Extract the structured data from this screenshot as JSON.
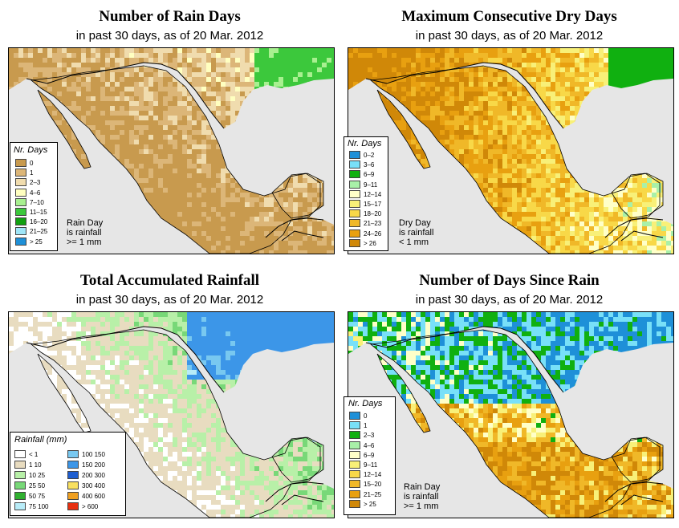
{
  "colors": {
    "sea": "#e6e6e6",
    "land_base": "#f5f0d8",
    "border": "#000000"
  },
  "panels": [
    {
      "title": "Number of Rain Days",
      "subtitle": "in past 30 days, as of  20 Mar. 2012",
      "legend": {
        "title": "Nr. Days",
        "items": [
          {
            "label": "0",
            "color": "#c89a4e"
          },
          {
            "label": "1",
            "color": "#dcb678"
          },
          {
            "label": "2–3",
            "color": "#f0dcae"
          },
          {
            "label": "4–6",
            "color": "#ffffc0"
          },
          {
            "label": "7–10",
            "color": "#a8f090"
          },
          {
            "label": "11–15",
            "color": "#3cc83c"
          },
          {
            "label": "16–20",
            "color": "#10a010"
          },
          {
            "label": "21–25",
            "color": "#a0e6f8"
          },
          {
            "label": "> 25",
            "color": "#1e90d8"
          }
        ]
      },
      "note": [
        "Rain Day",
        "is rainfall",
        ">= 1 mm"
      ]
    },
    {
      "title": "Maximum Consecutive Dry Days",
      "subtitle": "in past 30 days, as of  20 Mar. 2012",
      "legend": {
        "title": "Nr. Days",
        "items": [
          {
            "label": "0–2",
            "color": "#1e90d8"
          },
          {
            "label": "3–6",
            "color": "#78e0f8"
          },
          {
            "label": "6–9",
            "color": "#10b010"
          },
          {
            "label": "9–11",
            "color": "#a8f0a8"
          },
          {
            "label": "12–14",
            "color": "#ffffc8"
          },
          {
            "label": "15–17",
            "color": "#f8f078"
          },
          {
            "label": "18–20",
            "color": "#f8d848"
          },
          {
            "label": "21–23",
            "color": "#f0b828"
          },
          {
            "label": "24–26",
            "color": "#e8a010"
          },
          {
            "label": "> 26",
            "color": "#d08808"
          }
        ]
      },
      "note": [
        "Dry Day",
        "is rainfall",
        "< 1 mm"
      ]
    },
    {
      "title": "Total Accumulated Rainfall",
      "subtitle": "in past 30 days, as of  20 Mar. 2012",
      "legend": {
        "title": "Rainfall (mm)",
        "items": [
          {
            "label": "< 1",
            "color": "#ffffff"
          },
          {
            "label": "1    10",
            "color": "#e8dcc0"
          },
          {
            "label": "10    25",
            "color": "#b8f0a8"
          },
          {
            "label": "25    50",
            "color": "#78d878"
          },
          {
            "label": "50    75",
            "color": "#30b030"
          },
          {
            "label": "75    100",
            "color": "#b8ecf8"
          },
          {
            "label": "100    150",
            "color": "#78c8f0"
          },
          {
            "label": "150    200",
            "color": "#3c96e8"
          },
          {
            "label": "200    300",
            "color": "#1e5ed0"
          },
          {
            "label": "300    400",
            "color": "#f8e060"
          },
          {
            "label": "400    600",
            "color": "#f0a020"
          },
          {
            "label": "> 600",
            "color": "#e83010"
          }
        ]
      },
      "note": []
    },
    {
      "title": "Number of Days Since Rain",
      "subtitle": "in past 30 days, as of  20 Mar. 2012",
      "legend": {
        "title": "Nr. Days",
        "items": [
          {
            "label": "0",
            "color": "#1e90d8"
          },
          {
            "label": "1",
            "color": "#78e0f8"
          },
          {
            "label": "2–3",
            "color": "#10b010"
          },
          {
            "label": "4–6",
            "color": "#a8f0a8"
          },
          {
            "label": "6–9",
            "color": "#ffffc8"
          },
          {
            "label": "9–11",
            "color": "#f8f078"
          },
          {
            "label": "12–14",
            "color": "#f8d848"
          },
          {
            "label": "15–20",
            "color": "#f0b828"
          },
          {
            "label": "21–25",
            "color": "#e8a010"
          },
          {
            "label": "> 25",
            "color": "#d08808"
          }
        ]
      },
      "note": [
        "Rain Day",
        "is rainfall",
        ">= 1 mm"
      ]
    }
  ]
}
